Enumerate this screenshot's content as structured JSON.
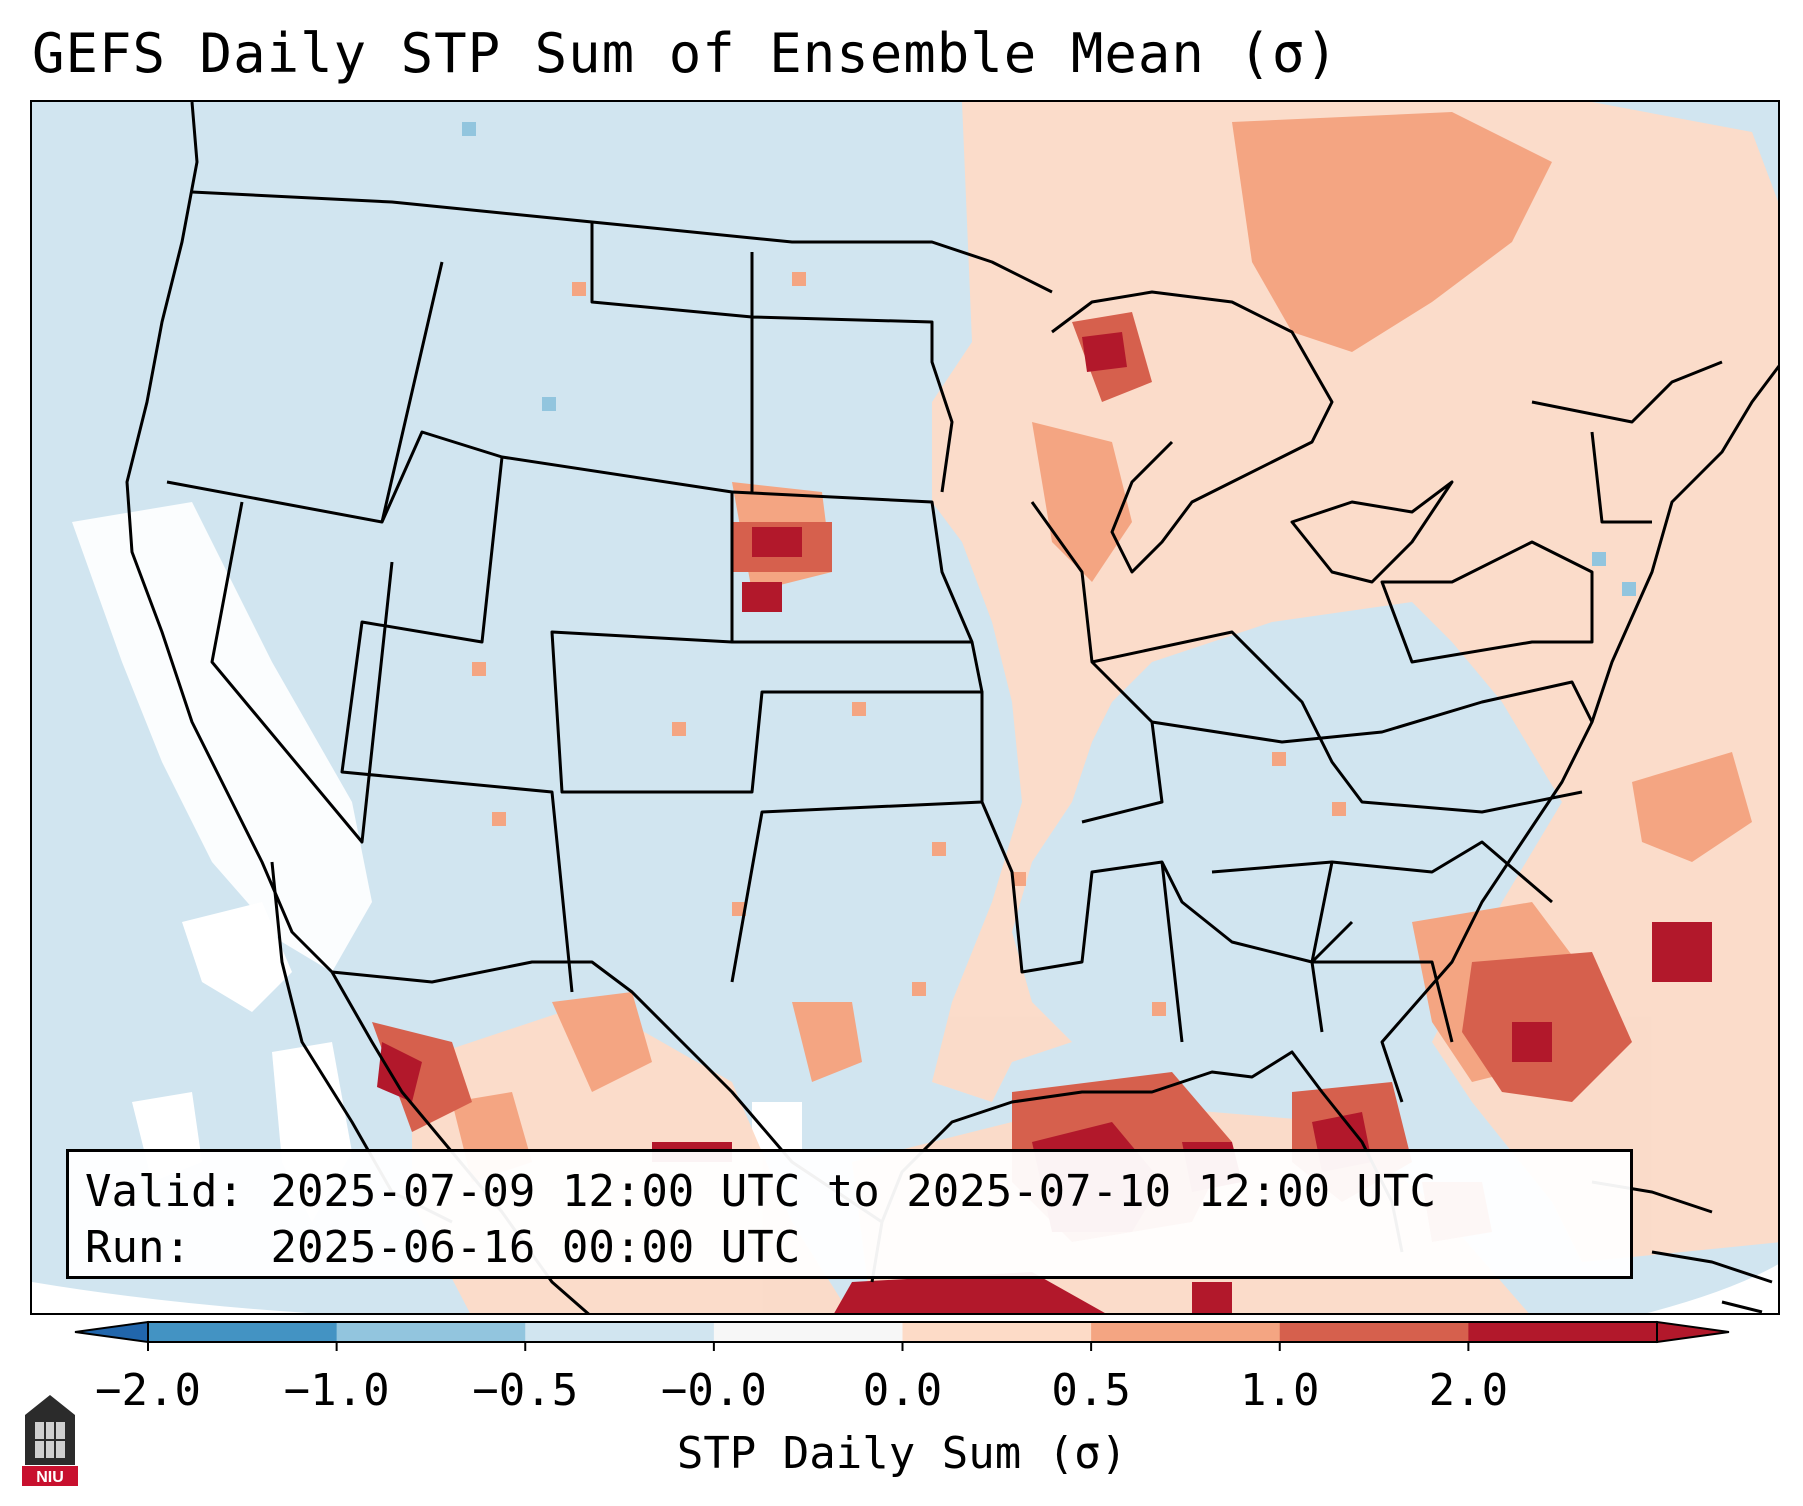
{
  "title": "GEFS Daily STP Sum of Ensemble Mean (σ)",
  "info": {
    "valid_label": "Valid:",
    "valid_value": "2025-07-09 12:00 UTC to 2025-07-10 12:00 UTC",
    "run_label": "Run:",
    "run_value": "2025-06-16 00:00 UTC"
  },
  "colorbar": {
    "label": "STP Daily Sum (σ)",
    "ticks": [
      "−2.0",
      "−1.0",
      "−0.5",
      "−0.0",
      "0.0",
      "0.5",
      "1.0",
      "2.0"
    ],
    "colors": [
      "#4393c3",
      "#92c5de",
      "#d1e5f0",
      "#f7f7f7",
      "#fddbc7",
      "#f4a582",
      "#d6604d",
      "#b2182b"
    ],
    "extend_low_color": "#2166ac",
    "extend_high_color": "#b2182b"
  },
  "map": {
    "background_color": "#d1e5f0",
    "projection": "Lambert Conformal, CONUS",
    "hotspots": [
      {
        "region": "Gulf of Mexico",
        "level": "1.0 to 2.0"
      },
      {
        "region": "Atlantic off Georgia/Florida",
        "level": "0.5 to 2.0"
      },
      {
        "region": "Northern Plains (SD/NE border)",
        "level": "1.0 to 2.0"
      },
      {
        "region": "Lake Superior / Upper Midwest",
        "level": "1.0 to 2.0"
      },
      {
        "region": "Northwest Mexico / Gulf of California",
        "level": "1.0 to 2.0"
      }
    ]
  },
  "logo": {
    "text": "NIU",
    "color": "#c8102e"
  }
}
